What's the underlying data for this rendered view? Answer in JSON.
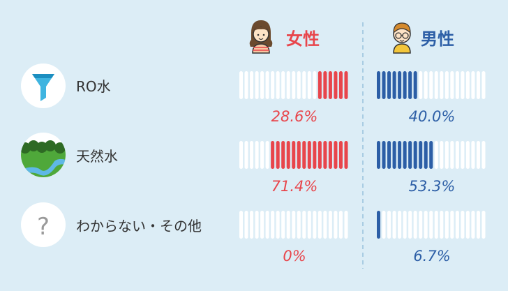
{
  "colors": {
    "background": "#dcedf6",
    "female": "#e8454b",
    "male": "#2c5ea6",
    "empty_bar": "#ffffff",
    "divider": "#a9cde3"
  },
  "chart_data": {
    "type": "bar",
    "columns": [
      {
        "label": "女性",
        "icon": "girl-avatar-icon",
        "color": "#e8454b"
      },
      {
        "label": "男性",
        "icon": "boy-avatar-icon",
        "color": "#2c5ea6"
      }
    ],
    "categories": [
      {
        "label": "RO水",
        "icon": "funnel-icon"
      },
      {
        "label": "天然水",
        "icon": "landscape-icon"
      },
      {
        "label": "わからない・その他",
        "icon": "question-icon"
      }
    ],
    "series": [
      {
        "name": "女性",
        "values": [
          28.6,
          71.4,
          0
        ],
        "labels": [
          "28.6%",
          "71.4%",
          "0%"
        ]
      },
      {
        "name": "男性",
        "values": [
          40.0,
          53.3,
          6.7
        ],
        "labels": [
          "40.0%",
          "53.3%",
          "6.7%"
        ]
      }
    ],
    "unit": "%",
    "ylim": [
      0,
      100
    ]
  }
}
